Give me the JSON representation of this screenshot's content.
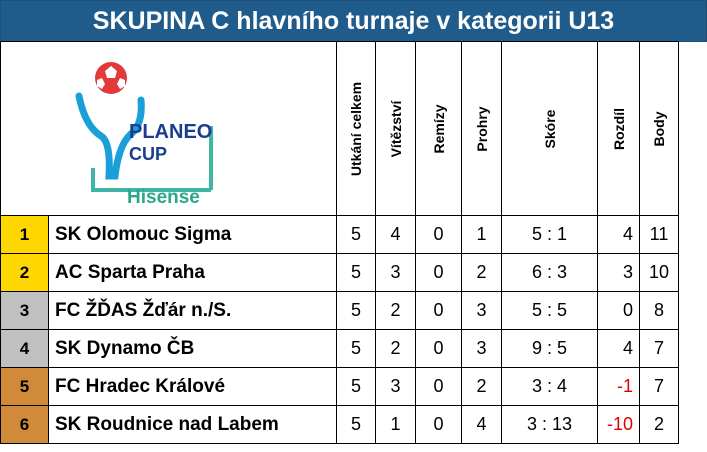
{
  "title": "SKUPINA C hlavního turnaje v kategorii U13",
  "logo": {
    "line1": "PLANEO",
    "line2": "CUP",
    "sponsor": "Hisense",
    "icon": "football-logo-icon"
  },
  "headers": [
    "Utkání celkem",
    "Vítězství",
    "Remízy",
    "Prohry",
    "Skóre",
    "Rozdíl",
    "Body"
  ],
  "colors": {
    "header_bg": "#1f5c8c",
    "gold": "#ffd700",
    "silver": "#c0c0c0",
    "bronze": "#d08a3a",
    "negative": "#e00000"
  },
  "rows": [
    {
      "rank": "1",
      "team": "SK Olomouc Sigma",
      "played": "5",
      "wins": "4",
      "draws": "0",
      "losses": "1",
      "score": "5 : 1",
      "diff": "4",
      "points": "11"
    },
    {
      "rank": "2",
      "team": "AC Sparta Praha",
      "played": "5",
      "wins": "3",
      "draws": "0",
      "losses": "2",
      "score": "6 : 3",
      "diff": "3",
      "points": "10"
    },
    {
      "rank": "3",
      "team": "FC ŽĎAS Žďár n./S.",
      "played": "5",
      "wins": "2",
      "draws": "0",
      "losses": "3",
      "score": "5 : 5",
      "diff": "0",
      "points": "8"
    },
    {
      "rank": "4",
      "team": "SK Dynamo ČB",
      "played": "5",
      "wins": "2",
      "draws": "0",
      "losses": "3",
      "score": "9 : 5",
      "diff": "4",
      "points": "7"
    },
    {
      "rank": "5",
      "team": "FC Hradec Králové",
      "played": "5",
      "wins": "3",
      "draws": "0",
      "losses": "2",
      "score": "3 : 4",
      "diff": "-1",
      "points": "7"
    },
    {
      "rank": "6",
      "team": "SK Roudnice nad Labem",
      "played": "5",
      "wins": "1",
      "draws": "0",
      "losses": "4",
      "score": "3 : 13",
      "diff": "-10",
      "points": "2"
    }
  ]
}
